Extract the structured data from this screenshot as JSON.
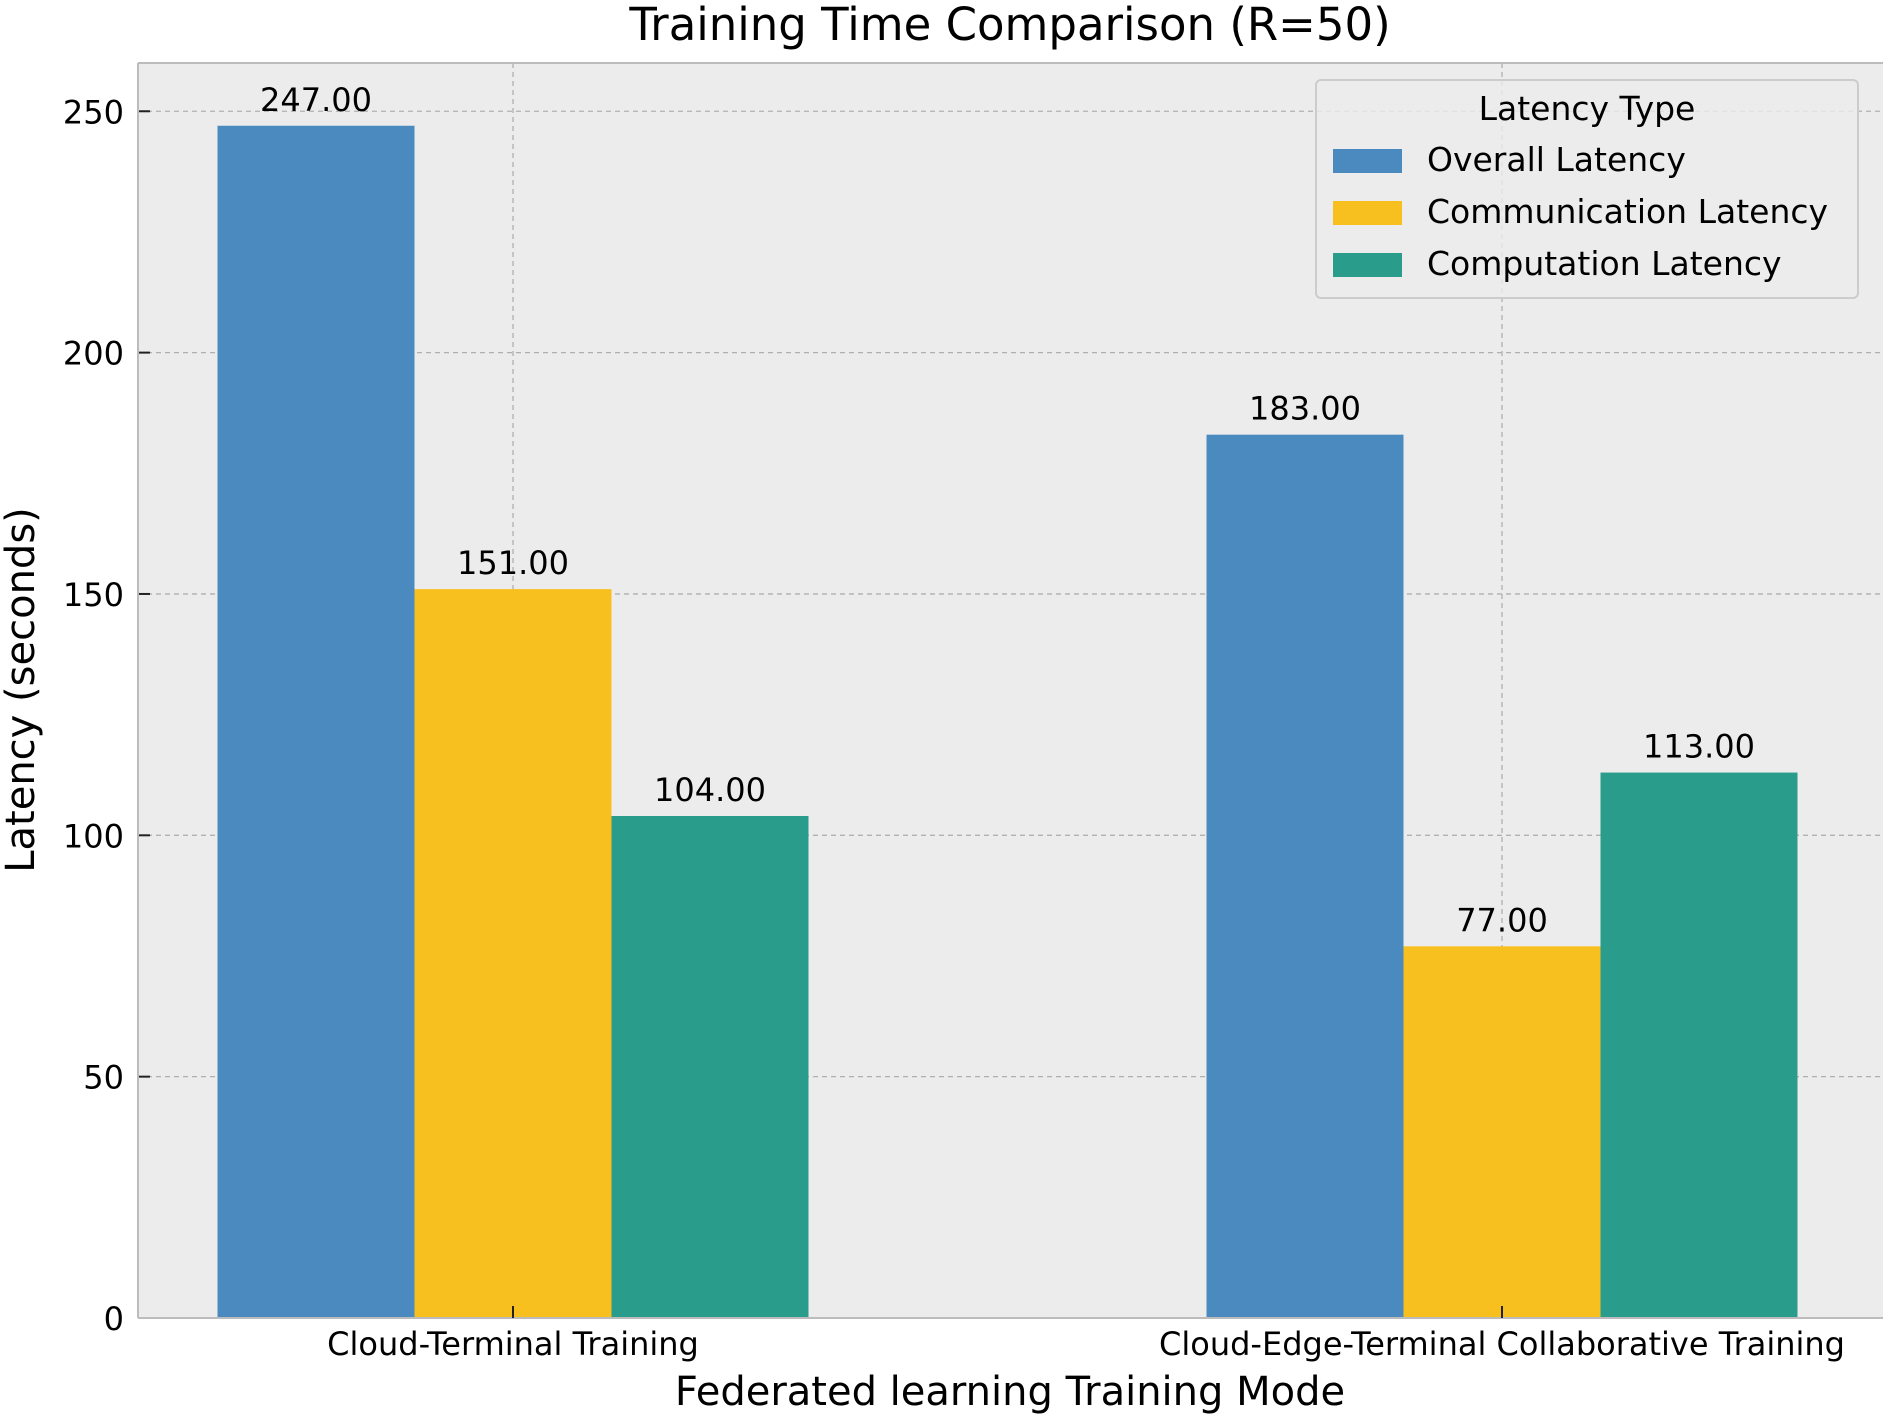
{
  "chart_data": {
    "type": "bar",
    "title": "Training Time Comparison (R=50)",
    "xlabel": "Federated learning Training Mode",
    "ylabel": "Latency (seconds)",
    "categories": [
      "Cloud-Terminal Training",
      "Cloud-Edge-Terminal Collaborative Training"
    ],
    "series": [
      {
        "name": "Overall Latency",
        "color": "#4b8abe",
        "values": [
          247,
          183
        ],
        "labels": [
          "247.00",
          "183.00"
        ]
      },
      {
        "name": "Communication Latency",
        "color": "#f8c01f",
        "values": [
          151,
          77
        ],
        "labels": [
          "151.00",
          "77.00"
        ]
      },
      {
        "name": "Computation Latency",
        "color": "#2a9c8c",
        "values": [
          104,
          113
        ],
        "labels": [
          "104.00",
          "113.00"
        ]
      }
    ],
    "ylim": [
      0,
      260
    ],
    "yticks": [
      0,
      50,
      100,
      150,
      200,
      250
    ],
    "ytick_labels": [
      "0",
      "50",
      "100",
      "150",
      "200",
      "250"
    ],
    "grid": true,
    "legend": {
      "title": "Latency Type",
      "placement": "top-right"
    },
    "colors": {
      "plot_background": "#ececec",
      "grid": "#b0b0b0",
      "axis": "#bcbcbc"
    }
  }
}
